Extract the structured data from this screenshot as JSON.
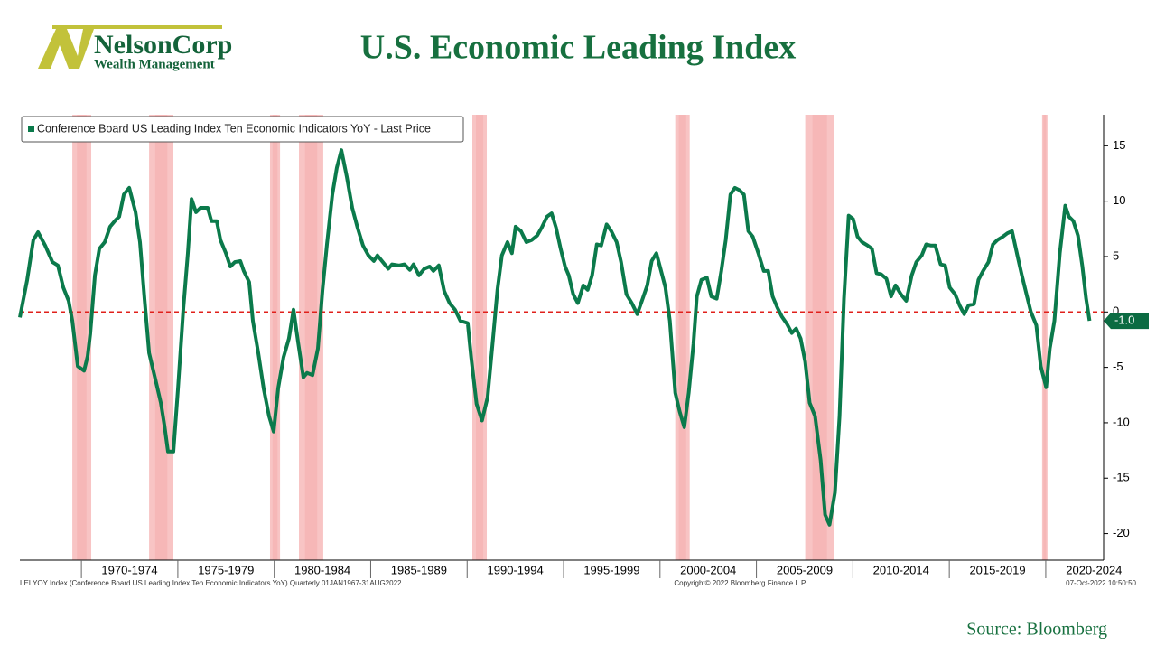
{
  "chart_data": {
    "type": "line",
    "title": "U.S. Economic Leading Index",
    "logo_name": "NelsonCorp",
    "logo_sub": "Wealth Management",
    "source": "Source: Bloomberg",
    "footer_left": "LEI YOY Index (Conference Board US Leading Index Ten Economic Indicators YoY)  Quarterly 01JAN1967-31AUG2022",
    "footer_center": "Copyright© 2022 Bloomberg Finance L.P.",
    "footer_right": "07-Oct-2022 10:50:50",
    "last_label": "-1.0",
    "xlim": [
      1966.81,
      2023.0
    ],
    "ylim": [
      -22.4,
      17.8
    ],
    "yticks": [
      15,
      10,
      5,
      0,
      -5,
      -10,
      -15,
      -20
    ],
    "xticks": [
      1970,
      1975,
      1980,
      1985,
      1990,
      1995,
      2000,
      2005,
      2010,
      2015,
      2020
    ],
    "period_labels": [
      "1970-1974",
      "1975-1979",
      "1980-1984",
      "1985-1989",
      "1990-1994",
      "1995-1999",
      "2000-2004",
      "2005-2009",
      "2010-2014",
      "2015-2019",
      "2020-2024"
    ],
    "zero_line": 0,
    "recessions": [
      [
        1969.53,
        1970.51
      ],
      [
        1973.51,
        1974.77
      ],
      [
        1979.78,
        1980.3
      ],
      [
        1981.28,
        1982.54
      ],
      [
        1990.27,
        1991.02
      ],
      [
        2000.79,
        2001.54
      ],
      [
        2007.53,
        2009.03
      ],
      [
        2019.81,
        2020.09
      ]
    ],
    "x": [
      1966.81,
      1967.19,
      1967.51,
      1967.75,
      1968.12,
      1968.5,
      1968.78,
      1969.06,
      1969.34,
      1969.53,
      1969.81,
      1970.14,
      1970.32,
      1970.46,
      1970.7,
      1970.93,
      1971.21,
      1971.49,
      1971.78,
      1971.96,
      1972.2,
      1972.48,
      1972.81,
      1973.04,
      1973.27,
      1973.51,
      1973.84,
      1974.12,
      1974.3,
      1974.49,
      1974.77,
      1975.01,
      1975.29,
      1975.52,
      1975.71,
      1975.94,
      1976.18,
      1976.55,
      1976.74,
      1977.02,
      1977.21,
      1977.49,
      1977.72,
      1977.96,
      1978.24,
      1978.42,
      1978.7,
      1978.89,
      1979.17,
      1979.45,
      1979.73,
      1979.97,
      1980.2,
      1980.48,
      1980.76,
      1981.0,
      1981.23,
      1981.51,
      1981.7,
      1981.98,
      1982.26,
      1982.5,
      1982.73,
      1983.01,
      1983.24,
      1983.48,
      1983.76,
      1984.04,
      1984.32,
      1984.6,
      1984.88,
      1985.16,
      1985.35,
      1985.63,
      1985.91,
      1986.1,
      1986.47,
      1986.75,
      1987.03,
      1987.22,
      1987.5,
      1987.78,
      1988.06,
      1988.25,
      1988.53,
      1988.81,
      1989.09,
      1989.37,
      1989.65,
      1990.03,
      1990.21,
      1990.49,
      1990.77,
      1991.06,
      1991.34,
      1991.57,
      1991.8,
      1992.09,
      1992.32,
      1992.51,
      1992.79,
      1993.07,
      1993.35,
      1993.63,
      1993.86,
      1994.14,
      1994.38,
      1994.61,
      1994.85,
      1995.08,
      1995.27,
      1995.5,
      1995.74,
      1996.02,
      1996.25,
      1996.48,
      1996.72,
      1996.95,
      1997.23,
      1997.47,
      1997.75,
      1997.98,
      1998.26,
      1998.54,
      1998.82,
      1999.1,
      1999.34,
      1999.57,
      1999.81,
      2000.04,
      2000.28,
      2000.51,
      2000.79,
      2001.02,
      2001.26,
      2001.49,
      2001.73,
      2001.91,
      2002.15,
      2002.43,
      2002.66,
      2002.94,
      2003.18,
      2003.41,
      2003.65,
      2003.88,
      2004.11,
      2004.35,
      2004.58,
      2004.81,
      2005.1,
      2005.38,
      2005.61,
      2005.84,
      2006.08,
      2006.31,
      2006.59,
      2006.83,
      2007.06,
      2007.29,
      2007.53,
      2007.76,
      2008.04,
      2008.33,
      2008.56,
      2008.79,
      2009.07,
      2009.31,
      2009.54,
      2009.78,
      2010.01,
      2010.24,
      2010.48,
      2010.76,
      2010.99,
      2011.23,
      2011.46,
      2011.74,
      2011.98,
      2012.21,
      2012.49,
      2012.77,
      2013.05,
      2013.29,
      2013.57,
      2013.8,
      2014.03,
      2014.27,
      2014.55,
      2014.78,
      2015.02,
      2015.3,
      2015.53,
      2015.77,
      2016.0,
      2016.28,
      2016.51,
      2016.75,
      2017.03,
      2017.26,
      2017.5,
      2017.78,
      2018.01,
      2018.25,
      2018.53,
      2018.76,
      2019.0,
      2019.23,
      2019.51,
      2019.74,
      2020.02,
      2020.21,
      2020.45,
      2020.73,
      2021.01,
      2021.2,
      2021.43,
      2021.67,
      2021.9,
      2022.09,
      2022.27
    ],
    "series": [
      {
        "name": "Conference Board US Leading Index Ten Economic Indicators YoY - Last Price",
        "color": "#0b7a4b",
        "values": [
          -0.5,
          2.9,
          6.5,
          7.2,
          6,
          4.5,
          4.2,
          2.2,
          1,
          -0.8,
          -4.9,
          -5.3,
          -4,
          -2,
          3.3,
          5.7,
          6.3,
          7.7,
          8.3,
          8.6,
          10.6,
          11.2,
          9,
          6.3,
          1.2,
          -3.7,
          -6.1,
          -8.2,
          -10.2,
          -12.6,
          -12.6,
          -6.9,
          0.4,
          5.3,
          10.2,
          9,
          9.4,
          9.4,
          8.2,
          8.2,
          6.5,
          5.3,
          4.1,
          4.5,
          4.6,
          3.7,
          2.7,
          -0.8,
          -3.7,
          -6.9,
          -9.4,
          -10.8,
          -6.9,
          -4.1,
          -2.4,
          0.2,
          -2.7,
          -5.9,
          -5.5,
          -5.7,
          -3.3,
          2,
          6.1,
          10.6,
          13,
          14.6,
          12.2,
          9.4,
          7.6,
          6,
          5.1,
          4.6,
          5.1,
          4.5,
          3.9,
          4.3,
          4.2,
          4.3,
          3.8,
          4.3,
          3.3,
          3.9,
          4.1,
          3.7,
          4.2,
          1.9,
          0.8,
          0.2,
          -0.8,
          -1,
          -4.1,
          -8.3,
          -9.8,
          -7.7,
          -2.4,
          2,
          5.1,
          6.3,
          5.3,
          7.7,
          7.3,
          6.3,
          6.5,
          6.9,
          7.6,
          8.6,
          8.9,
          7.6,
          5.7,
          4.1,
          3.3,
          1.6,
          0.8,
          2.4,
          2,
          3.3,
          6.1,
          6,
          7.9,
          7.3,
          6.3,
          4.5,
          1.6,
          0.8,
          -0.2,
          1.2,
          2.4,
          4.6,
          5.3,
          3.8,
          2.2,
          -0.8,
          -7.3,
          -9,
          -10.4,
          -7.3,
          -2.9,
          1.4,
          2.9,
          3.1,
          1.4,
          1.2,
          3.7,
          6.5,
          10.6,
          11.2,
          11,
          10.6,
          7.3,
          6.8,
          5.3,
          3.7,
          3.7,
          1.4,
          0.4,
          -0.4,
          -1.1,
          -1.9,
          -1.5,
          -2.4,
          -4.5,
          -8.2,
          -9.4,
          -13.4,
          -18.3,
          -19.2,
          -16.3,
          -9.4,
          1.2,
          8.7,
          8.4,
          6.8,
          6.3,
          6,
          5.7,
          3.5,
          3.4,
          3,
          1.4,
          2.4,
          1.6,
          1,
          3.3,
          4.5,
          5.1,
          6.1,
          6,
          6,
          4.3,
          4.2,
          2.2,
          1.6,
          0.6,
          -0.2,
          0.6,
          0.7,
          2.9,
          3.7,
          4.5,
          6.1,
          6.5,
          6.8,
          7.1,
          7.3,
          5.1,
          3.3,
          1.6,
          0,
          -1.2,
          -4.9,
          -6.8,
          -3.3,
          -0.8,
          5.3,
          9.6,
          8.6,
          8.2,
          6.9,
          4.1,
          1.2,
          -0.8
        ]
      }
    ]
  }
}
